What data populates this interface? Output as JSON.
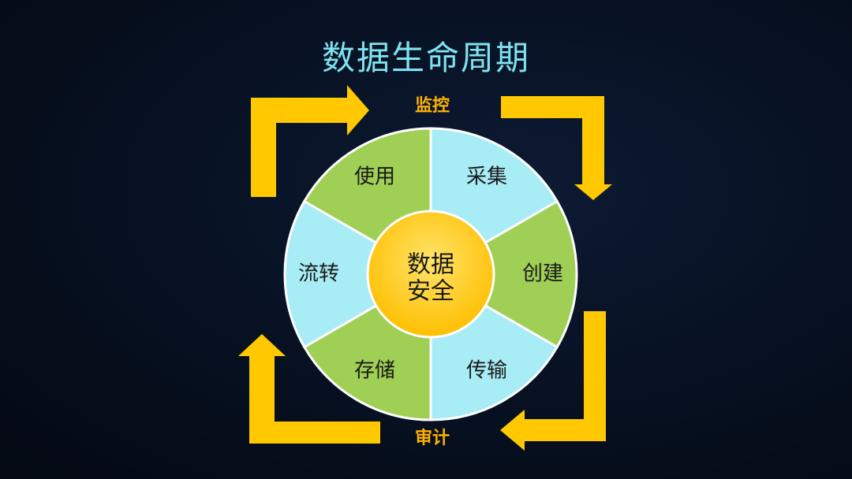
{
  "title": "数据生命周期",
  "labels": {
    "top": "监控",
    "bottom": "审计"
  },
  "center": {
    "line1": "数据",
    "line2": "安全"
  },
  "segments": [
    {
      "label": "采集",
      "color": "#a8ecf5"
    },
    {
      "label": "创建",
      "color": "#9fcf55"
    },
    {
      "label": "传输",
      "color": "#a8ecf5"
    },
    {
      "label": "存储",
      "color": "#9fcf55"
    },
    {
      "label": "流转",
      "color": "#a8ecf5"
    },
    {
      "label": "使用",
      "color": "#9fcf55"
    }
  ],
  "colors": {
    "arrow": "#ffc800",
    "center": "#ffc000",
    "title": "#7fe3ef",
    "side_label": "#ffb100"
  }
}
